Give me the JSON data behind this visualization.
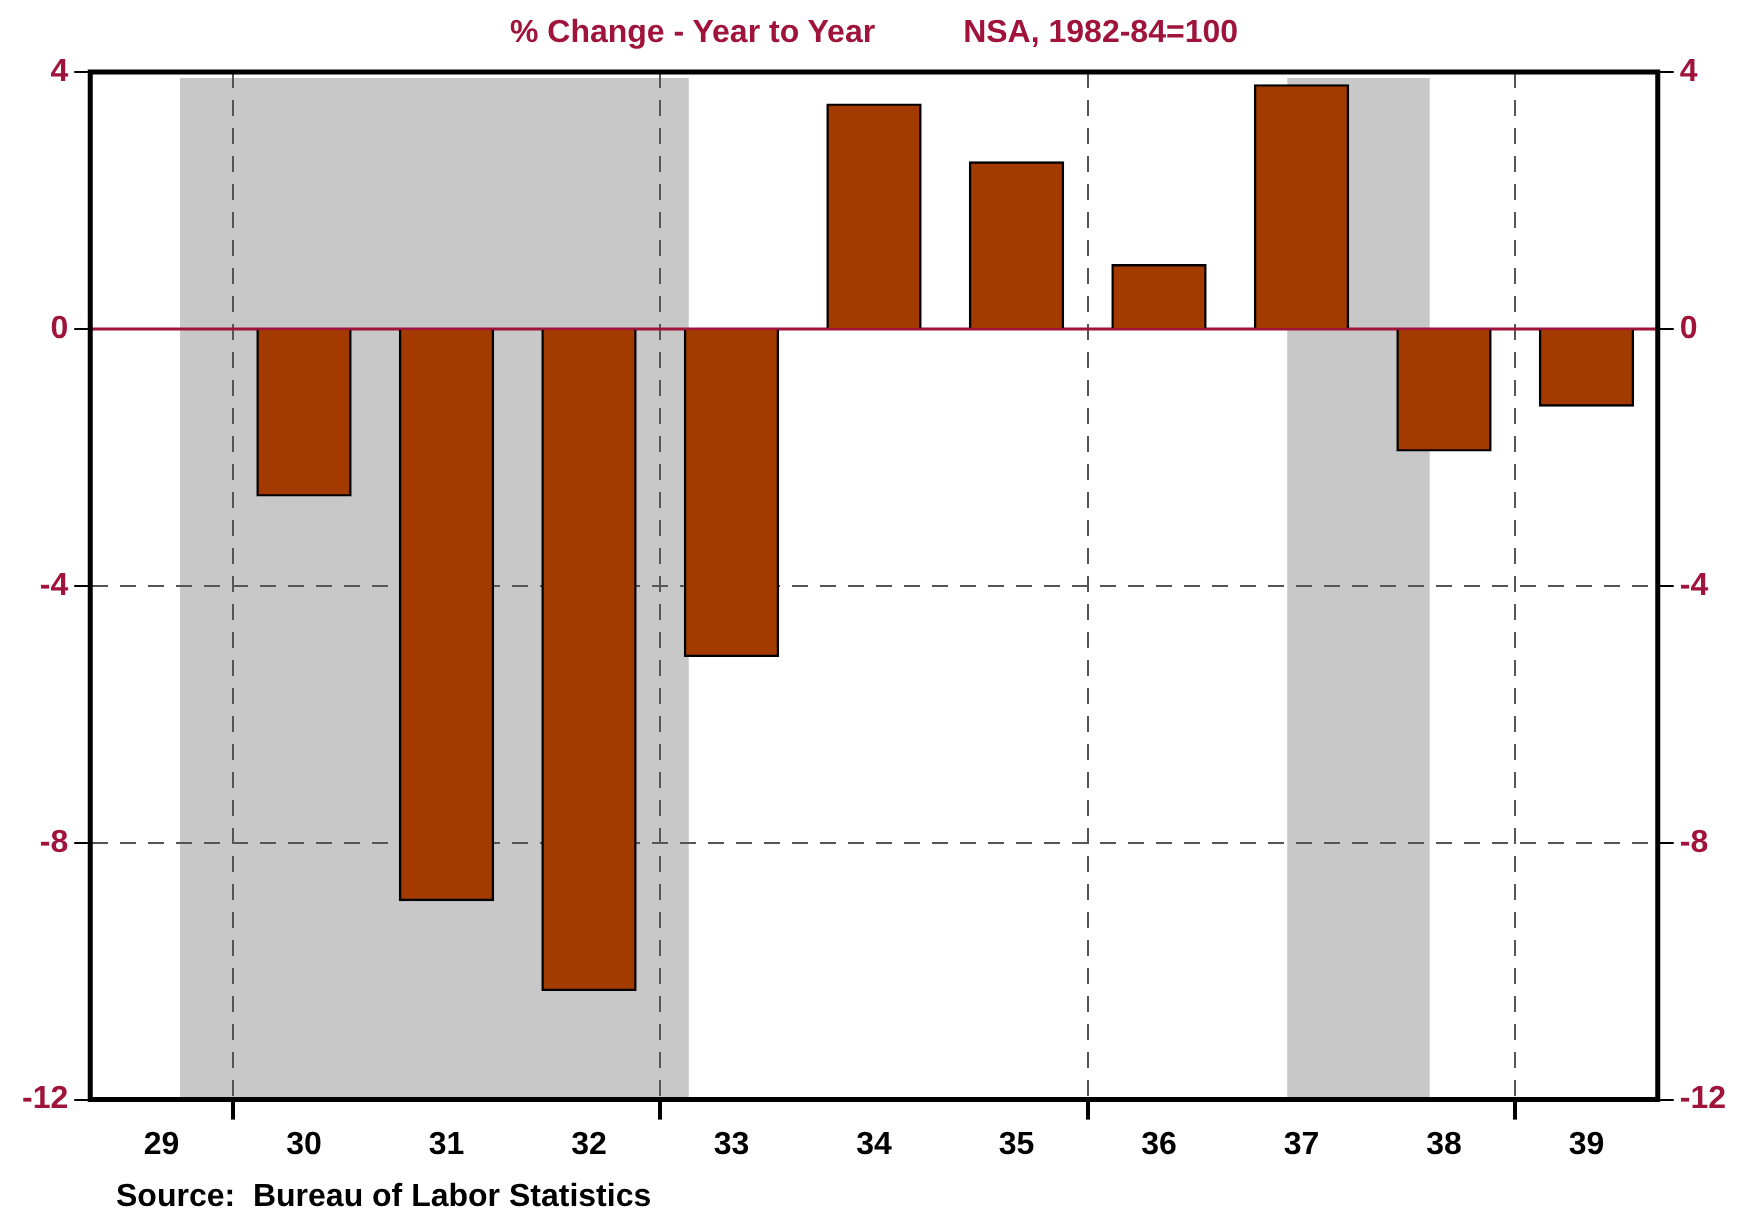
{
  "chart_data": {
    "type": "bar",
    "title": "% Change - Year to Year",
    "subtitle": "NSA, 1982-84=100",
    "x": [
      29,
      30,
      31,
      32,
      33,
      34,
      35,
      36,
      37,
      38,
      39
    ],
    "values": [
      0,
      -2.6,
      -8.9,
      -10.3,
      -5.1,
      3.5,
      2.6,
      1.0,
      3.8,
      -1.9,
      -1.2
    ],
    "color": "#a33a00",
    "xlim": [
      28.5,
      39.5
    ],
    "xticks": [
      29,
      {
        "value": 29.5,
        "label": null
      },
      30,
      31,
      32,
      {
        "value": 32.5,
        "label": null
      },
      33,
      34,
      35,
      {
        "value": 35.5,
        "label": null
      },
      36,
      37,
      38,
      {
        "value": 38.5,
        "label": null
      },
      39
    ],
    "ylim": [
      -12,
      4
    ],
    "yticks": [
      -12,
      -8,
      -4,
      0,
      4
    ],
    "y2lim": [
      -12,
      4
    ],
    "y2ticks": [
      -12,
      -8,
      -4,
      0,
      4
    ],
    "grid": true,
    "legend": false,
    "ref_lines": [
      {
        "axis": "y",
        "value": 0,
        "color": "#a0143c"
      }
    ],
    "bands": [
      {
        "axis": "x",
        "from": 29.13,
        "to": 32.7,
        "color": "#c8c8c8"
      },
      {
        "axis": "x",
        "from": 36.9,
        "to": 37.9,
        "color": "#c8c8c8"
      }
    ],
    "annotations": [
      "Source:  Bureau of Labor Statistics"
    ]
  }
}
